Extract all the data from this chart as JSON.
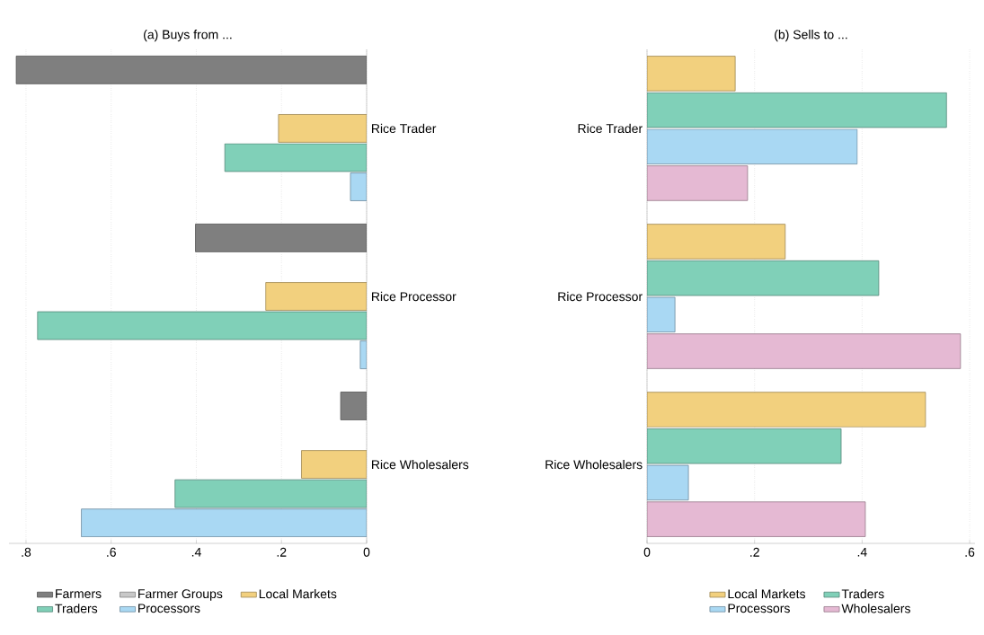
{
  "chart_data": [
    {
      "type": "bar",
      "orientation": "horizontal",
      "title": "(a) Buys from ...",
      "categories": [
        "Rice Trader",
        "Rice Processor",
        "Rice Wholesalers"
      ],
      "series": [
        {
          "name": "Farmers",
          "color": "#7f7f7f",
          "values": [
            0.823,
            0.402,
            0.061
          ]
        },
        {
          "name": "Farmer Groups",
          "color": "#c8c8c8",
          "values": [
            null,
            null,
            null
          ]
        },
        {
          "name": "Local Markets",
          "color": "#f2d07e",
          "values": [
            0.207,
            0.237,
            0.153
          ]
        },
        {
          "name": "Traders",
          "color": "#80d0b8",
          "values": [
            0.333,
            0.773,
            0.45
          ]
        },
        {
          "name": "Processors",
          "color": "#a9d8f3",
          "values": [
            0.038,
            0.015,
            0.67
          ]
        }
      ],
      "xlim": [
        0.84,
        0
      ],
      "xticks": [
        {
          "value": 0.8,
          "label": ".8"
        },
        {
          "value": 0.6,
          "label": ".6"
        },
        {
          "value": 0.4,
          "label": ".4"
        },
        {
          "value": 0.2,
          "label": ".2"
        },
        0
      ],
      "grid": "x",
      "legend": "bottom"
    },
    {
      "type": "bar",
      "orientation": "horizontal",
      "title": "(b) Sells to ...",
      "categories": [
        "Rice Trader",
        "Rice Processor",
        "Rice Wholesalers"
      ],
      "series": [
        {
          "name": "Local Markets",
          "color": "#f2d07e",
          "values": [
            0.164,
            0.257,
            0.518
          ]
        },
        {
          "name": "Traders",
          "color": "#80d0b8",
          "values": [
            0.557,
            0.431,
            0.361
          ]
        },
        {
          "name": "Processors",
          "color": "#a9d8f3",
          "values": [
            0.391,
            0.052,
            0.077
          ]
        },
        {
          "name": "Wholesalers",
          "color": "#e5b9d3",
          "values": [
            0.187,
            0.583,
            0.406
          ]
        }
      ],
      "xlim": [
        0,
        0.61
      ],
      "xticks": [
        0,
        {
          "value": 0.2,
          "label": ".2"
        },
        {
          "value": 0.4,
          "label": ".4"
        },
        {
          "value": 0.6,
          "label": ".6"
        }
      ],
      "grid": "x",
      "legend": "bottom"
    }
  ]
}
